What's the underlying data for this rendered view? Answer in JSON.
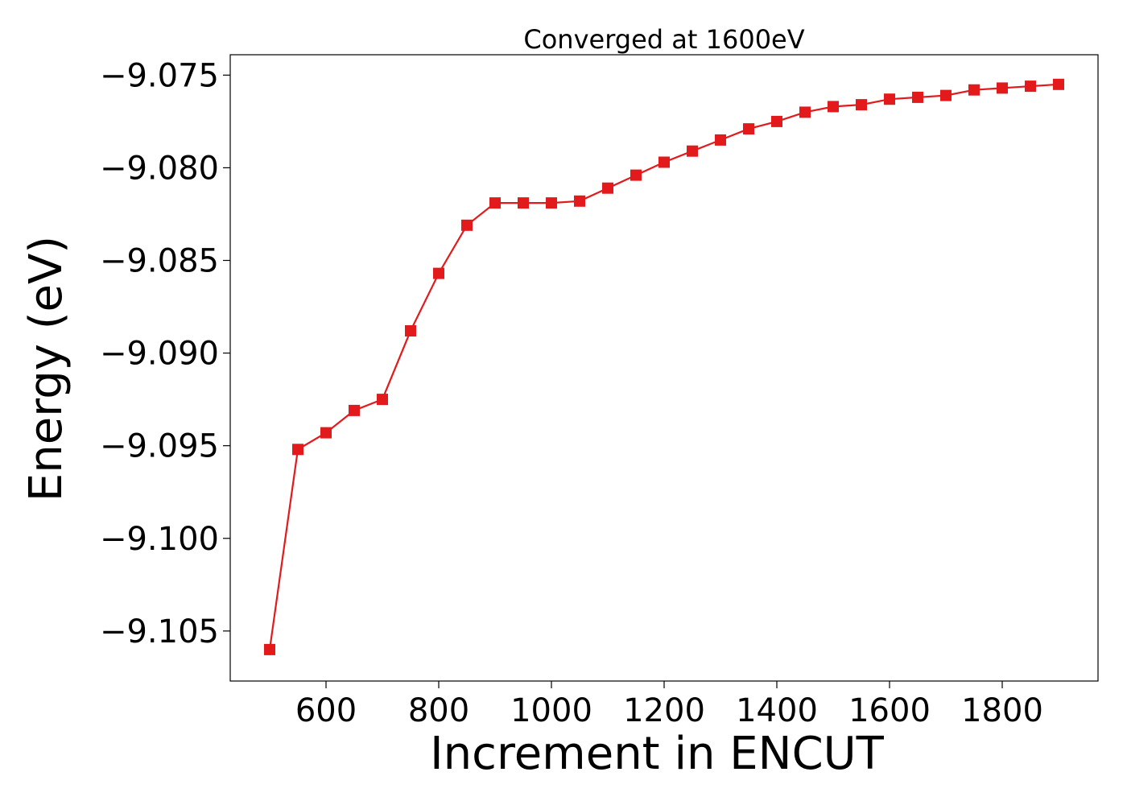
{
  "chart_data": {
    "type": "line",
    "title": "Converged at 1600eV",
    "xlabel": "Increment in ENCUT",
    "ylabel": "Energy (eV)",
    "xlim": [
      430,
      1970
    ],
    "ylim": [
      -9.1077,
      -9.0739
    ],
    "xticks": [
      600,
      800,
      1000,
      1200,
      1400,
      1600,
      1800
    ],
    "yticks": [
      -9.075,
      -9.08,
      -9.085,
      -9.09,
      -9.095,
      -9.1,
      -9.105
    ],
    "ytick_labels": [
      "−9.075",
      "−9.080",
      "−9.085",
      "−9.090",
      "−9.095",
      "−9.100",
      "−9.105"
    ],
    "grid": false,
    "legend": "none",
    "series": [
      {
        "color": "#e31a1c",
        "marker": "square",
        "x": [
          500,
          550,
          600,
          650,
          700,
          750,
          800,
          850,
          900,
          950,
          1000,
          1050,
          1100,
          1150,
          1200,
          1250,
          1300,
          1350,
          1400,
          1450,
          1500,
          1550,
          1600,
          1650,
          1700,
          1750,
          1800,
          1850,
          1900
        ],
        "y": [
          -9.106,
          -9.0952,
          -9.0943,
          -9.0931,
          -9.0925,
          -9.0888,
          -9.0857,
          -9.0831,
          -9.0819,
          -9.0819,
          -9.0819,
          -9.0818,
          -9.0811,
          -9.0804,
          -9.0797,
          -9.0791,
          -9.0785,
          -9.0779,
          -9.0775,
          -9.077,
          -9.0767,
          -9.0766,
          -9.0763,
          -9.0762,
          -9.0761,
          -9.0758,
          -9.0757,
          -9.0756,
          -9.0755
        ]
      }
    ]
  }
}
